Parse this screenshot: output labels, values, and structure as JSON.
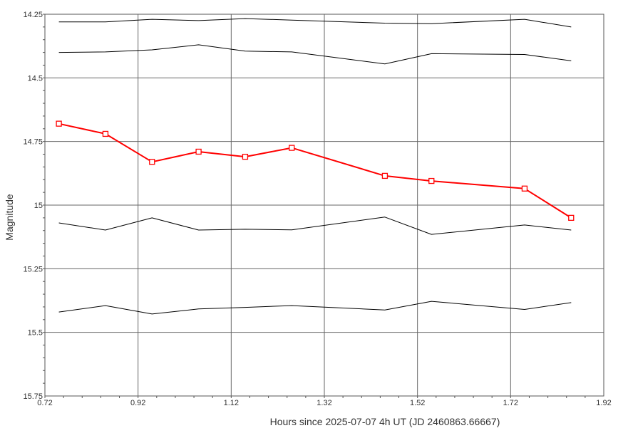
{
  "chart_data": {
    "type": "line",
    "title": "",
    "xlabel": "Hours since 2025-07-07 4h UT (JD 2460863.66667)",
    "ylabel": "Magnitude",
    "xlim": [
      0.72,
      1.92
    ],
    "ylim": [
      15.75,
      14.25
    ],
    "y_inverted": true,
    "x_ticks": [
      "0.72",
      "0.92",
      "1.12",
      "1.32",
      "1.52",
      "1.72",
      "1.92"
    ],
    "y_ticks": [
      "14.25",
      "14.5",
      "14.75",
      "15",
      "15.25",
      "15.5",
      "15.75"
    ],
    "grid": true,
    "x": [
      0.75,
      0.85,
      0.95,
      1.05,
      1.15,
      1.25,
      1.45,
      1.55,
      1.75,
      1.85
    ],
    "series": [
      {
        "color": "#ff0000",
        "marker": "square",
        "emphasis": true,
        "values": [
          14.68,
          14.72,
          14.83,
          14.79,
          14.81,
          14.775,
          14.885,
          14.905,
          14.935,
          15.05
        ]
      },
      {
        "color": "#000000",
        "marker": "none",
        "values": [
          14.28,
          14.28,
          14.27,
          14.275,
          14.267,
          14.273,
          14.285,
          14.287,
          14.27,
          14.3
        ]
      },
      {
        "color": "#000000",
        "marker": "none",
        "values": [
          14.4,
          14.398,
          14.39,
          14.37,
          14.395,
          14.398,
          14.445,
          14.405,
          14.408,
          14.433
        ]
      },
      {
        "color": "#000000",
        "marker": "none",
        "values": [
          15.07,
          15.098,
          15.05,
          15.098,
          15.095,
          15.097,
          15.047,
          15.115,
          15.078,
          15.098
        ]
      },
      {
        "color": "#000000",
        "marker": "none",
        "values": [
          15.42,
          15.395,
          15.428,
          15.408,
          15.402,
          15.395,
          15.412,
          15.378,
          15.41,
          15.383
        ]
      }
    ]
  }
}
